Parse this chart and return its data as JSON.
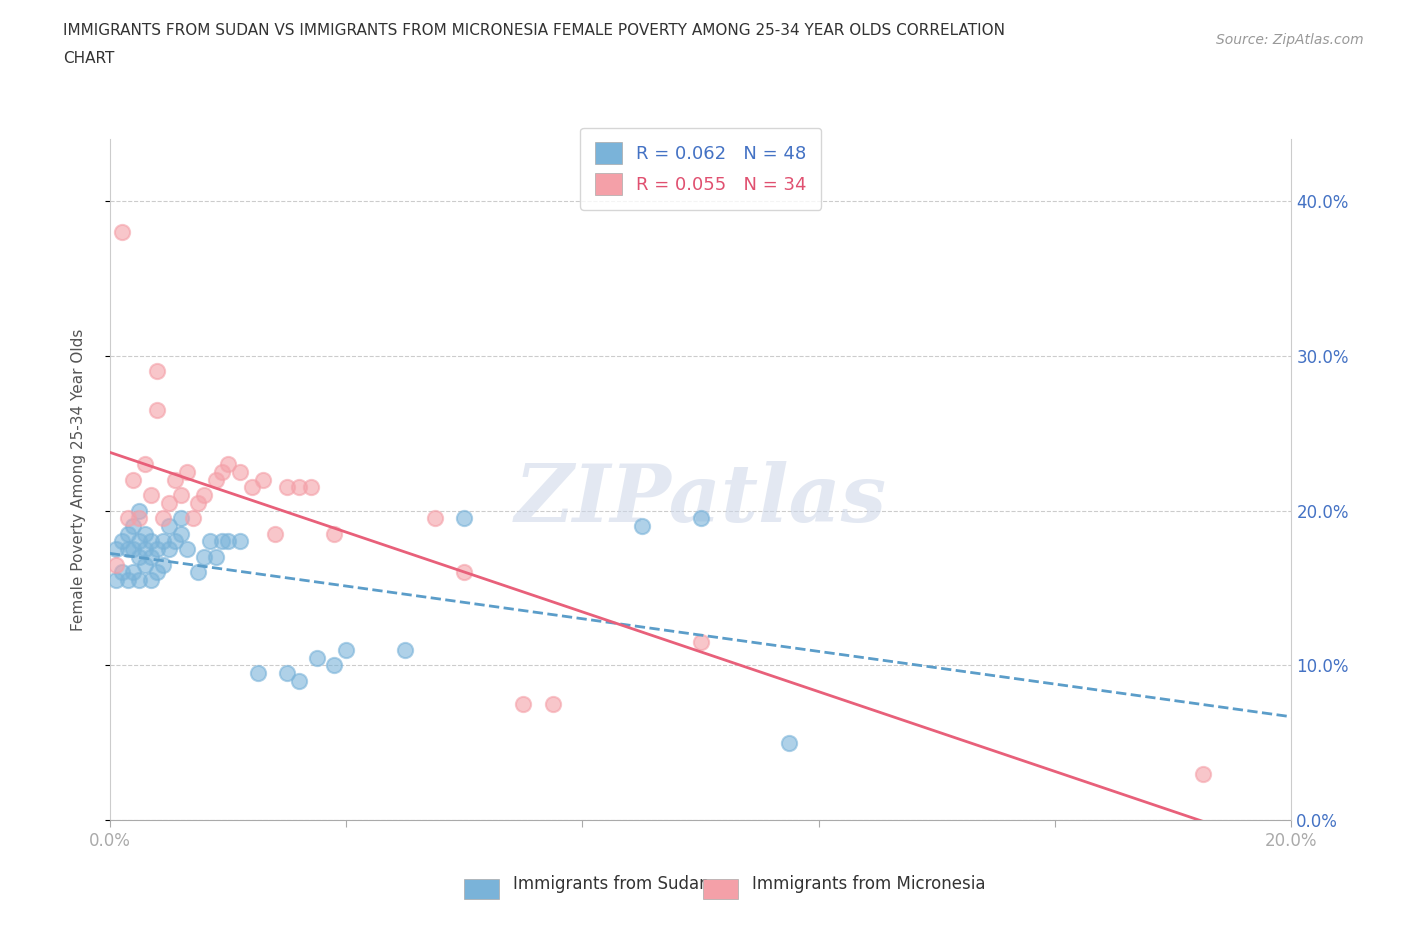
{
  "title_line1": "IMMIGRANTS FROM SUDAN VS IMMIGRANTS FROM MICRONESIA FEMALE POVERTY AMONG 25-34 YEAR OLDS CORRELATION",
  "title_line2": "CHART",
  "source": "Source: ZipAtlas.com",
  "ylabel": "Female Poverty Among 25-34 Year Olds",
  "xlim": [
    0.0,
    0.2
  ],
  "ylim": [
    0.0,
    0.44
  ],
  "yticks": [
    0.0,
    0.1,
    0.2,
    0.3,
    0.4
  ],
  "xticks": [
    0.0,
    0.04,
    0.08,
    0.12,
    0.16,
    0.2
  ],
  "sudan_color": "#7ab3d9",
  "micronesia_color": "#f4a0a8",
  "sudan_label": "Immigrants from Sudan",
  "micronesia_label": "Immigrants from Micronesia",
  "sudan_R": 0.062,
  "sudan_N": 48,
  "micronesia_R": 0.055,
  "micronesia_N": 34,
  "sudan_line_color": "#5b9dc9",
  "micronesia_line_color": "#e8607a",
  "sudan_x": [
    0.001,
    0.001,
    0.002,
    0.002,
    0.003,
    0.003,
    0.003,
    0.004,
    0.004,
    0.004,
    0.005,
    0.005,
    0.005,
    0.005,
    0.006,
    0.006,
    0.006,
    0.007,
    0.007,
    0.007,
    0.008,
    0.008,
    0.009,
    0.009,
    0.01,
    0.01,
    0.011,
    0.012,
    0.012,
    0.013,
    0.015,
    0.016,
    0.017,
    0.018,
    0.019,
    0.02,
    0.022,
    0.025,
    0.03,
    0.032,
    0.035,
    0.038,
    0.04,
    0.05,
    0.06,
    0.09,
    0.1,
    0.115
  ],
  "sudan_y": [
    0.155,
    0.175,
    0.16,
    0.18,
    0.155,
    0.175,
    0.185,
    0.16,
    0.175,
    0.19,
    0.155,
    0.17,
    0.18,
    0.2,
    0.165,
    0.175,
    0.185,
    0.155,
    0.17,
    0.18,
    0.16,
    0.175,
    0.165,
    0.18,
    0.175,
    0.19,
    0.18,
    0.185,
    0.195,
    0.175,
    0.16,
    0.17,
    0.18,
    0.17,
    0.18,
    0.18,
    0.18,
    0.095,
    0.095,
    0.09,
    0.105,
    0.1,
    0.11,
    0.11,
    0.195,
    0.19,
    0.195,
    0.05
  ],
  "micronesia_x": [
    0.001,
    0.002,
    0.003,
    0.004,
    0.005,
    0.006,
    0.007,
    0.008,
    0.008,
    0.009,
    0.01,
    0.011,
    0.012,
    0.013,
    0.014,
    0.015,
    0.016,
    0.018,
    0.019,
    0.02,
    0.022,
    0.024,
    0.026,
    0.028,
    0.03,
    0.032,
    0.034,
    0.038,
    0.055,
    0.06,
    0.07,
    0.075,
    0.1,
    0.185
  ],
  "micronesia_y": [
    0.165,
    0.38,
    0.195,
    0.22,
    0.195,
    0.23,
    0.21,
    0.265,
    0.29,
    0.195,
    0.205,
    0.22,
    0.21,
    0.225,
    0.195,
    0.205,
    0.21,
    0.22,
    0.225,
    0.23,
    0.225,
    0.215,
    0.22,
    0.185,
    0.215,
    0.215,
    0.215,
    0.185,
    0.195,
    0.16,
    0.075,
    0.075,
    0.115,
    0.03
  ],
  "watermark": "ZIPatlas",
  "background_color": "#ffffff",
  "grid_color": "#cccccc"
}
